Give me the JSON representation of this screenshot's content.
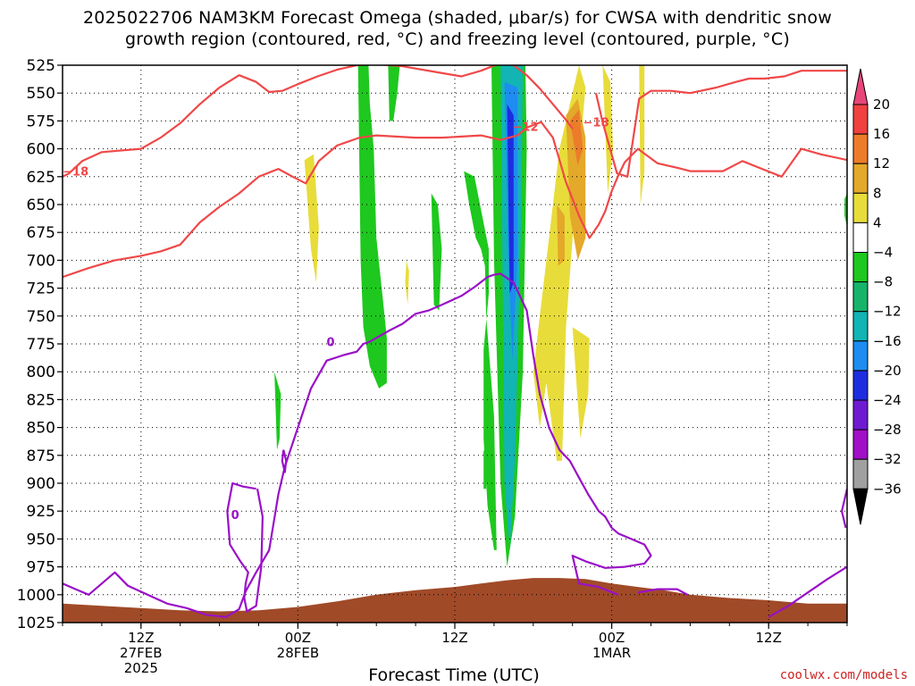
{
  "title_line1": "2025022706 NAM3KM Forecast Omega (shaded, μbar/s) for CWSA with dendritic snow",
  "title_line2": "growth region (contoured, red, °C) and freezing level (contoured, purple, °C)",
  "credit": "coolwx.com/models",
  "chart_data": {
    "type": "heatmap",
    "xlabel": "Forecast Time (UTC)",
    "ylabel": "",
    "x_range_hours": [
      0,
      60
    ],
    "x_ticks": [
      {
        "hour": 6,
        "label": "12Z",
        "sub1": "27FEB",
        "sub2": "2025"
      },
      {
        "hour": 18,
        "label": "00Z",
        "sub1": "28FEB",
        "sub2": ""
      },
      {
        "hour": 30,
        "label": "12Z",
        "sub1": "",
        "sub2": ""
      },
      {
        "hour": 42,
        "label": "00Z",
        "sub1": "1MAR",
        "sub2": ""
      },
      {
        "hour": 54,
        "label": "12Z",
        "sub1": "",
        "sub2": ""
      }
    ],
    "y_range_mb": [
      525,
      1025
    ],
    "y_ticks": [
      525,
      550,
      575,
      600,
      625,
      650,
      675,
      700,
      725,
      750,
      775,
      800,
      825,
      850,
      875,
      900,
      925,
      950,
      975,
      1000,
      1025
    ],
    "grid": true,
    "colorbar": {
      "labels": [
        "20",
        "16",
        "12",
        "8",
        "4",
        "−4",
        "−8",
        "−12",
        "−16",
        "−20",
        "−24",
        "−28",
        "−32",
        "−36"
      ],
      "colors": [
        "#e8467a",
        "#f04040",
        "#ec7c2a",
        "#e4a82a",
        "#e8dc3a",
        "#ffffff",
        "#1ec81e",
        "#16b46a",
        "#12b4b4",
        "#1e8cf0",
        "#1e2ce0",
        "#6e1ad2",
        "#a010c8",
        "#a0a0a0",
        "#000000"
      ]
    },
    "omega_regions": [
      {
        "color": "#1ec81e",
        "hours": [
          22.6,
          23.4,
          23.5,
          23.8,
          24.0,
          24.5,
          24.8,
          24.8,
          24.2,
          23.5,
          23.0,
          22.8,
          22.6
        ],
        "mb": [
          525,
          525,
          560,
          600,
          680,
          735,
          770,
          810,
          815,
          795,
          760,
          700,
          525
        ]
      },
      {
        "color": "#1ec81e",
        "hours": [
          24.9,
          25.8,
          25.6,
          25.3,
          25.0,
          24.9
        ],
        "mb": [
          525,
          525,
          550,
          575,
          575,
          525
        ]
      },
      {
        "color": "#1ec81e",
        "hours": [
          28.2,
          28.7,
          29.0,
          28.8,
          28.4,
          28.2
        ],
        "mb": [
          640,
          650,
          690,
          745,
          740,
          640
        ]
      },
      {
        "color": "#1ec81e",
        "hours": [
          16.2,
          16.7,
          16.6,
          16.4,
          16.2
        ],
        "mb": [
          800,
          820,
          860,
          870,
          800
        ]
      },
      {
        "color": "#1ec81e",
        "hours": [
          30.7,
          31.5,
          32.6,
          32.6,
          32.2,
          32.2,
          32.5,
          33.0,
          33.2,
          33.0,
          32.4,
          32.3,
          32.0,
          31.6,
          31.1,
          30.7
        ],
        "mb": [
          620,
          625,
          690,
          730,
          780,
          860,
          920,
          960,
          960,
          840,
          750,
          705,
          690,
          680,
          650,
          620
        ]
      },
      {
        "color": "#1ec81e",
        "hours": [
          32.8,
          35.4,
          35.5,
          35.2,
          34.6,
          34.0,
          33.5,
          33.0,
          32.8
        ],
        "mb": [
          525,
          525,
          600,
          800,
          930,
          975,
          900,
          700,
          525
        ]
      },
      {
        "color": "#1ec81e",
        "hours": [
          32.2,
          32.4,
          32.4,
          32.2
        ],
        "mb": [
          870,
          875,
          905,
          905
        ]
      },
      {
        "color": "#1ec81e",
        "hours": [
          59.8,
          60,
          60,
          59.8
        ],
        "mb": [
          645,
          640,
          670,
          660
        ]
      },
      {
        "color": "#12b4b4",
        "hours": [
          33.5,
          35.2,
          35.1,
          34.6,
          34.2,
          33.8,
          33.5
        ],
        "mb": [
          525,
          525,
          650,
          880,
          960,
          900,
          525
        ]
      },
      {
        "color": "#1e8cf0",
        "hours": [
          33.8,
          34.8,
          34.8,
          34.4,
          34.1,
          33.8
        ],
        "mb": [
          540,
          545,
          700,
          790,
          700,
          540
        ]
      },
      {
        "color": "#1e2ce0",
        "hours": [
          34.0,
          34.5,
          34.5,
          34.2,
          34.0
        ],
        "mb": [
          560,
          570,
          720,
          730,
          560
        ]
      },
      {
        "color": "#e8dc3a",
        "hours": [
          18.5,
          19.2,
          19.6,
          19.4,
          19.0,
          18.5
        ],
        "mb": [
          610,
          605,
          670,
          720,
          690,
          610
        ]
      },
      {
        "color": "#e8dc3a",
        "hours": [
          26.3,
          26.5,
          26.4,
          26.2
        ],
        "mb": [
          700,
          710,
          740,
          720
        ]
      },
      {
        "color": "#e8dc3a",
        "hours": [
          36.0,
          38.0,
          39.5,
          40.0,
          39.2,
          38.5,
          38.2,
          37.8,
          37.0,
          36.5,
          36.0
        ],
        "mb": [
          800,
          600,
          525,
          545,
          650,
          760,
          880,
          880,
          810,
          850,
          800
        ]
      },
      {
        "color": "#e8dc3a",
        "hours": [
          41.3,
          41.9,
          42.1,
          41.7,
          41.3
        ],
        "mb": [
          525,
          540,
          600,
          640,
          525
        ]
      },
      {
        "color": "#e8dc3a",
        "hours": [
          44.1,
          44.5,
          44.5,
          44.2,
          44.1
        ],
        "mb": [
          525,
          525,
          620,
          650,
          525
        ]
      },
      {
        "color": "#e8dc3a",
        "hours": [
          39.0,
          40.3,
          40.2,
          39.6,
          39.0
        ],
        "mb": [
          760,
          770,
          820,
          860,
          760
        ]
      },
      {
        "color": "#e4a82a",
        "hours": [
          38.5,
          39.4,
          40.0,
          40.0,
          39.4,
          38.8,
          38.5
        ],
        "mb": [
          570,
          555,
          590,
          680,
          700,
          660,
          570
        ]
      },
      {
        "color": "#e4a82a",
        "hours": [
          37.8,
          38.4,
          38.4,
          37.9,
          37.8
        ],
        "mb": [
          650,
          660,
          700,
          705,
          650
        ]
      },
      {
        "color": "#ec7c2a",
        "hours": [
          38.8,
          39.5,
          39.8,
          39.4,
          38.8
        ],
        "mb": [
          575,
          565,
          600,
          615,
          575
        ]
      }
    ],
    "dendritic_contours": [
      {
        "label": "−18",
        "label_at": {
          "hour": 1.0,
          "mb": 620
        },
        "hours": [
          0,
          0.5,
          1.5,
          3.0,
          6.0,
          7.5,
          9.0,
          10.5,
          12.0,
          13.5,
          14.8,
          15.8,
          16.8,
          18.0,
          19.5,
          21.0,
          22.5,
          24.0,
          26.0,
          28.5,
          30.5,
          32.0,
          33.5,
          34.5,
          35.5,
          36.5,
          37.5,
          38.5,
          39.0
        ],
        "mb": [
          625,
          622,
          611,
          603,
          600,
          590,
          577,
          560,
          545,
          534,
          540,
          549,
          548,
          542,
          535,
          529,
          525,
          524,
          526,
          531,
          535,
          530,
          523,
          525,
          534,
          546,
          560,
          574,
          582
        ]
      },
      {
        "label": "−18",
        "label_at": {
          "hour": 40.8,
          "mb": 576
        },
        "hours": [
          40.8,
          41.3,
          42.4,
          43.2,
          44.1,
          45.0,
          46.5,
          48.0,
          50.0,
          51.5,
          52.5,
          53.7,
          55.2,
          56.5,
          58.0,
          60.0
        ],
        "mb": [
          550,
          576,
          622,
          625,
          555,
          548,
          548,
          550,
          545,
          540,
          537,
          537,
          535,
          530,
          530,
          530
        ]
      },
      {
        "label": "−12",
        "label_at": {
          "hour": 35.4,
          "mb": 580
        },
        "hours": [
          0,
          2.0,
          4.0,
          6.0,
          7.5,
          9.0,
          10.5,
          12.0,
          13.5,
          15.0,
          16.5,
          17.6,
          18.6,
          19.6,
          21.0,
          22.7,
          24.0,
          25.5,
          27.0,
          29.0,
          30.5,
          32.0,
          33.5,
          34.8,
          35.5,
          36.6,
          37.5,
          38.5,
          39.5,
          40.3,
          41.0,
          41.5,
          42.0,
          42.5,
          43.0,
          44.0,
          45.5,
          47.0,
          48.0,
          49.5,
          50.5,
          52.0,
          53.5,
          55.0,
          56.5,
          58.0,
          60.0
        ],
        "mb": [
          715,
          707,
          700,
          696,
          692,
          686,
          666,
          652,
          640,
          625,
          618,
          625,
          631,
          611,
          597,
          590,
          588,
          589,
          590,
          590,
          589,
          588,
          592,
          588,
          581,
          576,
          590,
          630,
          660,
          680,
          668,
          656,
          638,
          624,
          612,
          600,
          613,
          617,
          620,
          620,
          620,
          611,
          618,
          625,
          600,
          605,
          610
        ]
      }
    ],
    "freezing_contours": [
      {
        "label": "0",
        "label_at": {
          "hour": 20.5,
          "mb": 773
        },
        "hours": [
          0,
          1.0,
          2.0,
          3.0,
          4.0,
          5.0,
          6.5,
          8.0,
          9.5,
          11.0,
          12.5,
          13.5,
          14.0,
          14.8,
          15.8,
          16.5,
          17.0,
          18.0,
          19.0,
          20.2,
          21.5,
          22.5,
          23.0,
          23.5,
          25.0,
          26.0,
          27.0,
          28.0,
          29.0,
          30.5,
          31.5,
          32.5,
          33.0,
          33.5,
          34.5,
          35.5,
          36.0,
          36.5,
          37.2,
          38.0,
          38.8,
          39.5,
          40.2,
          41.0,
          41.5,
          42.0,
          42.5,
          43.5,
          44.5,
          45.0,
          44.5,
          43.0,
          41.5,
          40.0,
          39.0,
          39.5,
          41.0,
          42.5
        ],
        "mb": [
          990,
          995,
          1000,
          990,
          980,
          992,
          1000,
          1008,
          1012,
          1018,
          1020,
          1013,
          997,
          980,
          960,
          910,
          885,
          850,
          815,
          790,
          785,
          782,
          775,
          773,
          763,
          757,
          748,
          745,
          740,
          732,
          724,
          715,
          713,
          712,
          720,
          745,
          785,
          820,
          850,
          870,
          880,
          895,
          910,
          925,
          930,
          940,
          945,
          950,
          955,
          965,
          972,
          975,
          976,
          970,
          965,
          990,
          993,
          1000
        ]
      },
      {
        "label": "0",
        "label_at": {
          "hour": 13.2,
          "mb": 928
        },
        "hours": [
          14.8,
          13.8,
          13.0,
          12.6,
          12.8,
          13.6,
          14.2,
          14.0,
          13.9,
          14.1,
          14.8,
          15.2,
          15.3,
          14.9
        ],
        "mb": [
          905,
          903,
          900,
          925,
          955,
          970,
          980,
          990,
          1003,
          1015,
          1010,
          975,
          930,
          905
        ]
      },
      {
        "label": "",
        "label_at": null,
        "hours": [
          16.9,
          17.1,
          17.0,
          16.8,
          16.9
        ],
        "mb": [
          870,
          880,
          890,
          880,
          870
        ]
      },
      {
        "label": "",
        "label_at": null,
        "hours": [
          44.0,
          45.5,
          47.0,
          47.8
        ],
        "mb": [
          998,
          995,
          995,
          1000
        ]
      },
      {
        "label": "",
        "label_at": null,
        "hours": [
          54.0,
          55.5,
          57.0,
          58.5,
          60.0
        ],
        "mb": [
          1020,
          1010,
          998,
          986,
          975
        ]
      },
      {
        "label": "",
        "label_at": null,
        "hours": [
          60.0,
          59.6,
          59.9
        ],
        "mb": [
          905,
          925,
          940
        ]
      }
    ],
    "terrain": {
      "color": "#a04a28",
      "hours": [
        0,
        3,
        6,
        9,
        12,
        15,
        18,
        21,
        24,
        27,
        30,
        32,
        34,
        36,
        38,
        40,
        42,
        44,
        46,
        48,
        51,
        54,
        57,
        60
      ],
      "mb": [
        1008,
        1010,
        1012,
        1014,
        1015,
        1014,
        1011,
        1006,
        1000,
        996,
        993,
        990,
        987,
        985,
        985,
        986,
        990,
        993,
        996,
        1000,
        1003,
        1005,
        1008,
        1008
      ]
    }
  }
}
